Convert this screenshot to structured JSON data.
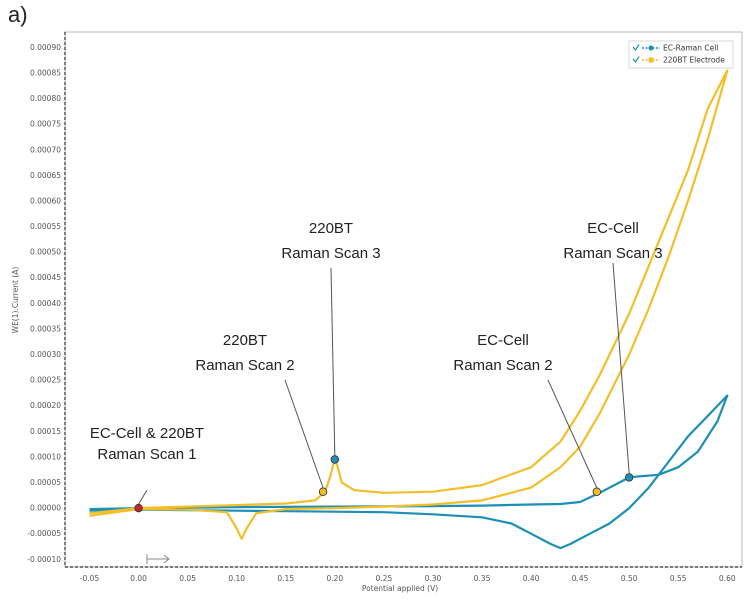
{
  "panel_label": "a)",
  "chart_data": {
    "type": "line",
    "xlabel": "Potential applied (V)",
    "ylabel": "WE(1).Current (A)",
    "xlim": [
      -0.075,
      0.615
    ],
    "ylim": [
      -0.000115,
      0.00093
    ],
    "x_ticks": [
      "-0.05",
      "0.00",
      "0.05",
      "0.10",
      "0.15",
      "0.20",
      "0.25",
      "0.30",
      "0.35",
      "0.40",
      "0.45",
      "0.50",
      "0.55",
      "0.60"
    ],
    "y_ticks": [
      "-0.00010",
      "-0.00005",
      "0.00000",
      "0.00005",
      "0.00010",
      "0.00015",
      "0.00020",
      "0.00025",
      "0.00030",
      "0.00035",
      "0.00040",
      "0.00045",
      "0.00050",
      "0.00055",
      "0.00060",
      "0.00065",
      "0.00070",
      "0.00075",
      "0.00080",
      "0.00085",
      "0.00090"
    ],
    "grid": false,
    "legend_position": "top-right",
    "colors": {
      "ec_cell": "#1b8fb5",
      "bt220": "#f2bf2a",
      "marker_red": "#c0282d",
      "leader": "#555555"
    },
    "series": [
      {
        "name": "EC-Raman Cell",
        "forward": [
          [
            -0.05,
            -2e-06
          ],
          [
            0.0,
            0.0
          ],
          [
            0.1,
            2e-06
          ],
          [
            0.2,
            3e-06
          ],
          [
            0.3,
            4e-06
          ],
          [
            0.35,
            5e-06
          ],
          [
            0.4,
            7e-06
          ],
          [
            0.43,
            8e-06
          ],
          [
            0.45,
            1.2e-05
          ],
          [
            0.47,
            3e-05
          ],
          [
            0.49,
            5e-05
          ],
          [
            0.5,
            6e-05
          ],
          [
            0.51,
            6.2e-05
          ],
          [
            0.53,
            6.5e-05
          ],
          [
            0.55,
            8e-05
          ],
          [
            0.57,
            0.00011
          ],
          [
            0.59,
            0.00017
          ],
          [
            0.6,
            0.00022
          ]
        ],
        "reverse": [
          [
            0.6,
            0.00022
          ],
          [
            0.58,
            0.00018
          ],
          [
            0.56,
            0.00014
          ],
          [
            0.54,
            9e-05
          ],
          [
            0.52,
            4e-05
          ],
          [
            0.5,
            0.0
          ],
          [
            0.48,
            -3e-05
          ],
          [
            0.46,
            -5e-05
          ],
          [
            0.44,
            -7e-05
          ],
          [
            0.43,
            -7.8e-05
          ],
          [
            0.42,
            -7e-05
          ],
          [
            0.4,
            -5e-05
          ],
          [
            0.38,
            -3e-05
          ],
          [
            0.35,
            -1.8e-05
          ],
          [
            0.3,
            -1.2e-05
          ],
          [
            0.25,
            -8e-06
          ],
          [
            0.2,
            -7e-06
          ],
          [
            0.15,
            -6e-06
          ],
          [
            0.1,
            -5e-06
          ],
          [
            0.05,
            -4e-06
          ],
          [
            0.0,
            -3e-06
          ],
          [
            -0.05,
            -5e-06
          ]
        ]
      },
      {
        "name": "220BT Electrode",
        "forward": [
          [
            -0.05,
            -1e-05
          ],
          [
            -0.02,
            -4e-06
          ],
          [
            0.0,
            0.0
          ],
          [
            0.05,
            3e-06
          ],
          [
            0.1,
            6e-06
          ],
          [
            0.15,
            9e-06
          ],
          [
            0.18,
            1.5e-05
          ],
          [
            0.19,
            3.2e-05
          ],
          [
            0.195,
            6e-05
          ],
          [
            0.2,
            9.5e-05
          ],
          [
            0.203,
            8e-05
          ],
          [
            0.207,
            5e-05
          ],
          [
            0.22,
            3.5e-05
          ],
          [
            0.25,
            3e-05
          ],
          [
            0.3,
            3.2e-05
          ],
          [
            0.35,
            4.5e-05
          ],
          [
            0.4,
            8e-05
          ],
          [
            0.43,
            0.00013
          ],
          [
            0.45,
            0.00019
          ],
          [
            0.47,
            0.00026
          ],
          [
            0.5,
            0.00038
          ],
          [
            0.53,
            0.00052
          ],
          [
            0.56,
            0.00066
          ],
          [
            0.58,
            0.00078
          ],
          [
            0.6,
            0.000855
          ]
        ],
        "reverse": [
          [
            0.6,
            0.000855
          ],
          [
            0.58,
            0.00072
          ],
          [
            0.56,
            0.0006
          ],
          [
            0.54,
            0.00049
          ],
          [
            0.52,
            0.00039
          ],
          [
            0.5,
            0.0003
          ],
          [
            0.47,
            0.000185
          ],
          [
            0.45,
            0.00012
          ],
          [
            0.43,
            8e-05
          ],
          [
            0.4,
            4e-05
          ],
          [
            0.35,
            1.5e-05
          ],
          [
            0.3,
            7e-06
          ],
          [
            0.25,
            3e-06
          ],
          [
            0.2,
            0.0
          ],
          [
            0.15,
            -2e-06
          ],
          [
            0.12,
            -1e-05
          ],
          [
            0.11,
            -4e-05
          ],
          [
            0.105,
            -6e-05
          ],
          [
            0.1,
            -4e-05
          ],
          [
            0.09,
            -8e-06
          ],
          [
            0.05,
            -3e-06
          ],
          [
            0.0,
            -2e-06
          ],
          [
            -0.05,
            -1.5e-05
          ]
        ]
      }
    ],
    "markers": [
      {
        "x": 0.0,
        "y": 0.0,
        "color": "#c0282d"
      },
      {
        "x": 0.188,
        "y": 3.2e-05,
        "color": "#f2bf2a"
      },
      {
        "x": 0.2,
        "y": 9.5e-05,
        "color": "#1b8fb5"
      },
      {
        "x": 0.467,
        "y": 3.2e-05,
        "color": "#f2bf2a"
      },
      {
        "x": 0.5,
        "y": 6e-05,
        "color": "#1b8fb5"
      }
    ],
    "annotations": [
      {
        "lines": [
          "EC-Cell & 220BT",
          "Raman Scan 1"
        ],
        "target_x": 0.0,
        "target_y": 0.0
      },
      {
        "lines": [
          "220BT",
          "Raman Scan 2"
        ],
        "target_x": 0.188,
        "target_y": 3.2e-05
      },
      {
        "lines": [
          "220BT",
          "Raman Scan 3"
        ],
        "target_x": 0.2,
        "target_y": 9.5e-05
      },
      {
        "lines": [
          "EC-Cell",
          "Raman Scan 2"
        ],
        "target_x": 0.467,
        "target_y": 3.2e-05
      },
      {
        "lines": [
          "EC-Cell",
          "Raman Scan 3"
        ],
        "target_x": 0.5,
        "target_y": 6e-05
      }
    ]
  }
}
